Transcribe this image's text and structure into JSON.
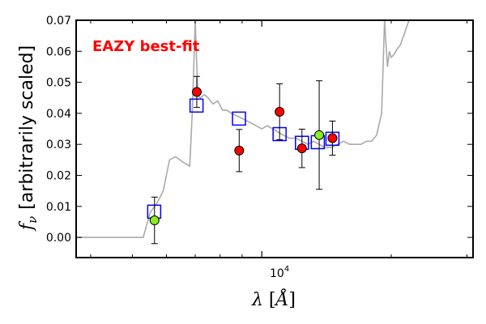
{
  "chart_data": {
    "type": "scatter",
    "annotation": "EAZY best-fit",
    "annotation_color": "#ff0000",
    "x_scale": "log",
    "xlim": [
      3700,
      31000
    ],
    "ylim": [
      -0.0065,
      0.07
    ],
    "yticks": [
      "0.00",
      "0.01",
      "0.02",
      "0.03",
      "0.04",
      "0.05",
      "0.06",
      "0.07"
    ],
    "xtick_major": {
      "value": 10000,
      "label_base": "10",
      "label_exp": "4"
    },
    "xlabel_text": {
      "symbol": "λ",
      "open": " [",
      "unit": "Å",
      "close": "]"
    },
    "ylabel_text": {
      "symbol": "f",
      "subscript": "ν",
      "rest": "[arbitrarily scaled]"
    },
    "grid": false,
    "template_spectrum": {
      "color": "#aaaaaa",
      "x": [
        3700,
        4200,
        4600,
        5000,
        5150,
        5300,
        5500,
        5700,
        5800,
        5900,
        6100,
        6300,
        6450,
        6600,
        6800,
        6900,
        7000,
        7100,
        7200,
        7350,
        7500,
        7700,
        7900,
        8100,
        8300,
        8500,
        8800,
        9100,
        9400,
        9700,
        10000,
        10300,
        10600,
        10900,
        11200,
        11600,
        12000,
        12400,
        12800,
        13200,
        13600,
        14000,
        14500,
        15000,
        15500,
        16000,
        16500,
        17000,
        17500,
        18000,
        18500,
        19000,
        19300,
        19600,
        19800,
        20000,
        20300,
        20700,
        21000,
        21500,
        22000
      ],
      "y": [
        0.0,
        0.0,
        0.0,
        0.0,
        0.0,
        0.0,
        0.008,
        0.011,
        0.013,
        0.015,
        0.025,
        0.026,
        0.025,
        0.024,
        0.023,
        0.042,
        0.07,
        0.046,
        0.045,
        0.046,
        0.045,
        0.043,
        0.044,
        0.041,
        0.041,
        0.04,
        0.039,
        0.038,
        0.037,
        0.036,
        0.035,
        0.036,
        0.035,
        0.034,
        0.033,
        0.032,
        0.032,
        0.031,
        0.03,
        0.031,
        0.03,
        0.029,
        0.029,
        0.03,
        0.031,
        0.03,
        0.03,
        0.03,
        0.031,
        0.031,
        0.033,
        0.04,
        0.07,
        0.055,
        0.06,
        0.058,
        0.059,
        0.061,
        0.062,
        0.066,
        0.07
      ]
    },
    "series": [
      {
        "marker": "square",
        "color": "#0000ff",
        "points": [
          {
            "x": 5620,
            "y": 0.0083
          },
          {
            "x": 7050,
            "y": 0.0425
          },
          {
            "x": 8850,
            "y": 0.0383
          },
          {
            "x": 11000,
            "y": 0.0333
          },
          {
            "x": 12400,
            "y": 0.0305
          },
          {
            "x": 13500,
            "y": 0.0307
          },
          {
            "x": 14600,
            "y": 0.0318
          }
        ]
      },
      {
        "marker": "circle",
        "color": "#ff0000",
        "points": [
          {
            "x": 7060,
            "y": 0.0469,
            "err": 0.005
          },
          {
            "x": 8860,
            "y": 0.028,
            "err": 0.0068
          },
          {
            "x": 11000,
            "y": 0.0405,
            "err": 0.009
          },
          {
            "x": 12400,
            "y": 0.0287,
            "err": 0.0062
          },
          {
            "x": 14600,
            "y": 0.032,
            "err": 0.0055
          }
        ]
      },
      {
        "marker": "circle",
        "color": "#88ee22",
        "points": [
          {
            "x": 5630,
            "y": 0.0055,
            "err": 0.0075
          },
          {
            "x": 13600,
            "y": 0.033,
            "err": 0.0175
          }
        ]
      }
    ]
  }
}
